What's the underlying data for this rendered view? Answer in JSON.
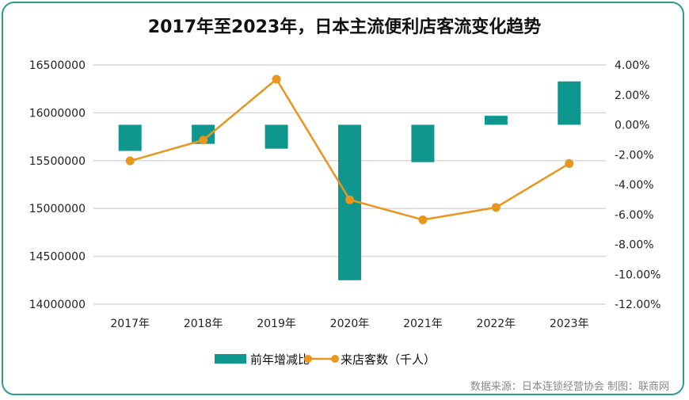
{
  "chart_data": {
    "type": "bar+line",
    "title": "2017年至2023年，日本主流便利店客流变化趋势",
    "categories": [
      "2017年",
      "2018年",
      "2019年",
      "2020年",
      "2021年",
      "2022年",
      "2023年"
    ],
    "series": [
      {
        "name": "前年增减比",
        "type": "bar",
        "axis": "right",
        "color": "#0e968f",
        "values": [
          -1.75,
          -1.28,
          -1.6,
          -10.4,
          -2.5,
          0.6,
          2.9
        ]
      },
      {
        "name": "来店客数（千人）",
        "type": "line",
        "axis": "left",
        "color": "#e8961e",
        "values": [
          15497000,
          15715000,
          16351000,
          15091000,
          14882000,
          15011000,
          15470000
        ]
      }
    ],
    "left_axis": {
      "ylim": [
        14000000,
        16500000
      ],
      "ticks": [
        "16500000",
        "16000000",
        "15500000",
        "15000000",
        "14500000",
        "14000000"
      ]
    },
    "right_axis": {
      "ylim": [
        -12,
        4
      ],
      "ticks": [
        "4.00%",
        "2.00%",
        "0.00%",
        "-2.00%",
        "-4.00%",
        "-6.00%",
        "-8.00%",
        "-10.00%",
        "-12.00%"
      ]
    },
    "grid": true,
    "legend": "bottom"
  },
  "source": "数据来源：日本连锁经营协会  制图：联商网"
}
